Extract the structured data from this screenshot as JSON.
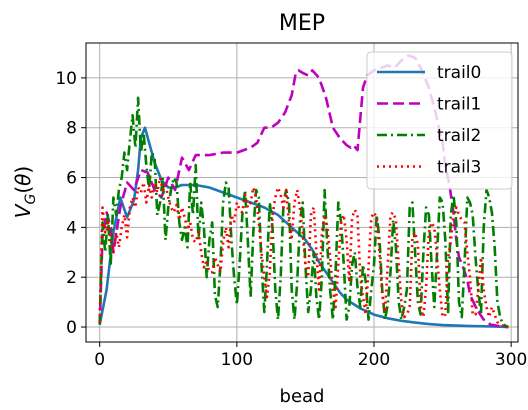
{
  "chart_data": {
    "type": "line",
    "title": "MEP",
    "xlabel": "bead",
    "ylabel": "V_G(θ)",
    "xlim": [
      -10,
      305
    ],
    "ylim": [
      -0.6,
      11.4
    ],
    "xticks": [
      0,
      100,
      200,
      300
    ],
    "yticks": [
      0,
      2,
      4,
      6,
      8,
      10
    ],
    "grid": true,
    "legend": "top-right",
    "series": [
      {
        "name": "trail0",
        "color": "#1f77b4",
        "dash": "solid",
        "x": [
          0,
          5,
          10,
          15,
          20,
          25,
          28,
          30,
          33,
          36,
          40,
          45,
          50,
          55,
          60,
          70,
          80,
          90,
          100,
          110,
          120,
          130,
          140,
          150,
          155,
          160,
          165,
          170,
          175,
          180,
          190,
          200,
          210,
          220,
          230,
          240,
          250,
          260,
          270,
          280,
          290,
          298
        ],
        "y": [
          0.1,
          1.5,
          3.8,
          5.2,
          4.4,
          5.1,
          6.3,
          7.6,
          8.0,
          7.4,
          6.6,
          5.9,
          5.6,
          5.6,
          5.7,
          5.7,
          5.6,
          5.4,
          5.2,
          5.0,
          4.8,
          4.5,
          4.0,
          3.5,
          3.1,
          2.6,
          2.2,
          1.8,
          1.4,
          1.1,
          0.75,
          0.5,
          0.35,
          0.25,
          0.18,
          0.12,
          0.08,
          0.06,
          0.04,
          0.03,
          0.02,
          0.0
        ]
      },
      {
        "name": "trail1",
        "color": "#bf00bf",
        "dash": "dashed",
        "x": [
          0,
          2,
          5,
          8,
          10,
          15,
          20,
          25,
          30,
          35,
          40,
          45,
          50,
          55,
          60,
          65,
          70,
          75,
          80,
          90,
          100,
          110,
          115,
          120,
          125,
          130,
          135,
          140,
          143,
          145,
          148,
          152,
          155,
          160,
          165,
          170,
          175,
          180,
          183,
          185,
          188,
          192,
          195,
          200,
          205,
          210,
          215,
          220,
          225,
          230,
          235,
          240,
          245,
          248,
          250,
          252,
          255,
          258,
          260,
          262,
          265,
          268,
          270,
          275,
          280,
          285,
          290,
          295,
          298
        ],
        "y": [
          0.1,
          3.6,
          4.6,
          4.0,
          3.0,
          4.8,
          5.8,
          5.5,
          6.3,
          6.2,
          5.5,
          5.2,
          6.0,
          5.5,
          6.8,
          6.3,
          6.9,
          6.9,
          6.9,
          7.0,
          7.0,
          7.2,
          7.4,
          8.0,
          8.0,
          8.2,
          8.6,
          9.3,
          10.2,
          10.3,
          10.2,
          10.1,
          10.3,
          10.0,
          9.2,
          8.0,
          7.6,
          7.3,
          7.2,
          7.3,
          7.1,
          9.6,
          10.1,
          10.3,
          10.4,
          10.5,
          10.4,
          10.7,
          10.9,
          10.8,
          10.3,
          9.6,
          8.6,
          7.8,
          7.4,
          6.5,
          5.7,
          4.6,
          3.5,
          2.8,
          2.4,
          1.9,
          1.3,
          0.7,
          0.3,
          0.1,
          0.05,
          0.02,
          0.0
        ]
      },
      {
        "name": "trail2",
        "color": "#007f00",
        "dash": "dashdot",
        "x": [
          0,
          2,
          4,
          6,
          8,
          10,
          12,
          14,
          16,
          18,
          20,
          22,
          24,
          26,
          28,
          30,
          32,
          34,
          36,
          38,
          40,
          42,
          44,
          46,
          48,
          50,
          52,
          54,
          56,
          58,
          60,
          62,
          64,
          66,
          68,
          70,
          72,
          74,
          76,
          78,
          80,
          82,
          84,
          86,
          88,
          90,
          92,
          94,
          96,
          98,
          100,
          102,
          104,
          106,
          108,
          110,
          112,
          114,
          116,
          118,
          120,
          122,
          124,
          126,
          128,
          130,
          132,
          134,
          136,
          138,
          140,
          142,
          144,
          146,
          148,
          150,
          152,
          154,
          156,
          158,
          160,
          162,
          164,
          166,
          168,
          170,
          172,
          174,
          176,
          178,
          180,
          182,
          184,
          186,
          188,
          190,
          192,
          194,
          196,
          198,
          200,
          202,
          204,
          206,
          208,
          210,
          212,
          214,
          216,
          218,
          220,
          222,
          224,
          226,
          228,
          230,
          232,
          234,
          236,
          238,
          240,
          242,
          244,
          246,
          248,
          250,
          252,
          254,
          256,
          258,
          260,
          262,
          264,
          266,
          268,
          270,
          272,
          274,
          276,
          278,
          280,
          282,
          284,
          286,
          288,
          290,
          292,
          294,
          296,
          298
        ],
        "y": [
          0.1,
          4.2,
          3.0,
          4.5,
          2.5,
          5.2,
          4.5,
          5.5,
          6.0,
          7.0,
          6.3,
          7.5,
          8.5,
          7.2,
          9.2,
          7.0,
          7.8,
          6.5,
          5.5,
          7.0,
          6.8,
          4.5,
          5.0,
          6.0,
          3.5,
          4.8,
          5.5,
          6.0,
          5.8,
          4.2,
          3.5,
          4.0,
          3.2,
          5.8,
          4.5,
          6.5,
          3.5,
          5.0,
          4.0,
          2.0,
          3.5,
          4.2,
          1.3,
          0.8,
          2.5,
          5.0,
          5.8,
          5.6,
          3.5,
          2.0,
          0.9,
          2.5,
          4.5,
          5.5,
          3.5,
          1.2,
          3.8,
          5.5,
          5.2,
          2.5,
          0.6,
          2.5,
          5.0,
          4.0,
          1.5,
          0.3,
          2.0,
          5.0,
          5.5,
          5.0,
          1.5,
          0.3,
          1.8,
          4.2,
          5.0,
          2.5,
          0.6,
          1.5,
          3.0,
          1.2,
          0.3,
          2.0,
          5.5,
          3.2,
          1.5,
          0.3,
          2.2,
          5.0,
          4.2,
          2.5,
          0.3,
          0.8,
          2.5,
          3.0,
          1.6,
          0.8,
          2.5,
          1.8,
          0.3,
          1.5,
          2.5,
          4.5,
          3.5,
          1.5,
          0.3,
          0.9,
          2.2,
          4.3,
          3.2,
          1.0,
          0.3,
          0.8,
          1.5,
          4.8,
          5.0,
          3.0,
          1.0,
          0.5,
          3.0,
          4.8,
          4.5,
          2.5,
          0.8,
          3.0,
          5.2,
          5.0,
          3.5,
          0.6,
          4.5,
          5.3,
          4.2,
          1.0,
          0.4,
          2.5,
          5.2,
          5.0,
          4.5,
          2.8,
          1.5,
          0.5,
          4.0,
          5.5,
          5.2,
          4.6,
          3.2,
          1.0,
          0.4,
          0.1,
          0.05,
          0.0
        ]
      },
      {
        "name": "trail3",
        "color": "#ff0000",
        "dash": "dotted",
        "x": [
          0,
          2,
          4,
          6,
          8,
          10,
          12,
          14,
          16,
          18,
          20,
          22,
          24,
          26,
          28,
          30,
          32,
          34,
          36,
          38,
          40,
          42,
          44,
          46,
          48,
          50,
          52,
          54,
          56,
          58,
          60,
          62,
          64,
          66,
          68,
          70,
          72,
          74,
          76,
          78,
          80,
          82,
          84,
          86,
          88,
          90,
          92,
          94,
          96,
          98,
          100,
          102,
          104,
          106,
          108,
          110,
          112,
          114,
          116,
          118,
          120,
          122,
          124,
          126,
          128,
          130,
          132,
          134,
          136,
          138,
          140,
          142,
          144,
          146,
          148,
          150,
          152,
          154,
          156,
          158,
          160,
          162,
          164,
          166,
          168,
          170,
          172,
          174,
          176,
          178,
          180,
          182,
          184,
          186,
          188,
          190,
          192,
          194,
          196,
          198,
          200,
          202,
          204,
          206,
          208,
          210,
          212,
          214,
          216,
          218,
          220,
          222,
          224,
          226,
          228,
          230,
          232,
          234,
          236,
          238,
          240,
          242,
          244,
          246,
          248,
          250,
          252,
          254,
          256,
          258,
          260,
          262,
          264,
          266,
          268,
          270,
          272,
          274,
          276,
          278,
          280,
          282,
          284,
          286,
          288,
          290,
          292,
          294,
          296,
          298
        ],
        "y": [
          0.2,
          4.8,
          3.8,
          4.2,
          3.5,
          3.0,
          3.8,
          3.2,
          4.0,
          4.5,
          3.6,
          4.8,
          5.2,
          4.8,
          5.6,
          5.4,
          5.8,
          5.0,
          5.7,
          5.2,
          5.8,
          5.4,
          6.0,
          5.5,
          5.7,
          5.2,
          4.8,
          4.6,
          4.9,
          4.3,
          4.8,
          4.4,
          3.9,
          4.2,
          3.5,
          3.4,
          3.8,
          3.0,
          2.4,
          2.6,
          2.2,
          2.2,
          2.8,
          2.5,
          2.2,
          3.4,
          4.0,
          3.2,
          4.5,
          4.2,
          5.0,
          4.7,
          4.6,
          5.3,
          4.8,
          5.0,
          5.6,
          5.2,
          4.2,
          3.0,
          2.0,
          1.2,
          2.2,
          4.5,
          5.2,
          5.6,
          5.3,
          4.8,
          5.5,
          4.2,
          3.6,
          5.0,
          5.5,
          4.8,
          3.8,
          2.5,
          2.0,
          4.5,
          4.8,
          3.0,
          1.5,
          3.8,
          4.5,
          4.0,
          2.8,
          1.5,
          0.8,
          2.5,
          4.2,
          4.5,
          3.5,
          1.8,
          4.4,
          4.7,
          4.5,
          2.0,
          1.2,
          0.5,
          2.4,
          4.4,
          4.6,
          4.4,
          3.0,
          1.3,
          0.6,
          2.5,
          4.5,
          4.6,
          4.3,
          2.5,
          1.0,
          0.4,
          0.5,
          0.8,
          3.6,
          3.8,
          3.3,
          0.8,
          0.4,
          1.6,
          3.8,
          4.2,
          4.0,
          2.8,
          1.5,
          0.4,
          0.5,
          2.8,
          3.4,
          4.5,
          4.8,
          4.5,
          4.3,
          4.2,
          3.0,
          2.0,
          0.5,
          0.5,
          1.5,
          2.8,
          1.5,
          0.8,
          0.4,
          0.8,
          0.5,
          0.2,
          0.1,
          0.05,
          0.02,
          0.0
        ]
      }
    ]
  }
}
